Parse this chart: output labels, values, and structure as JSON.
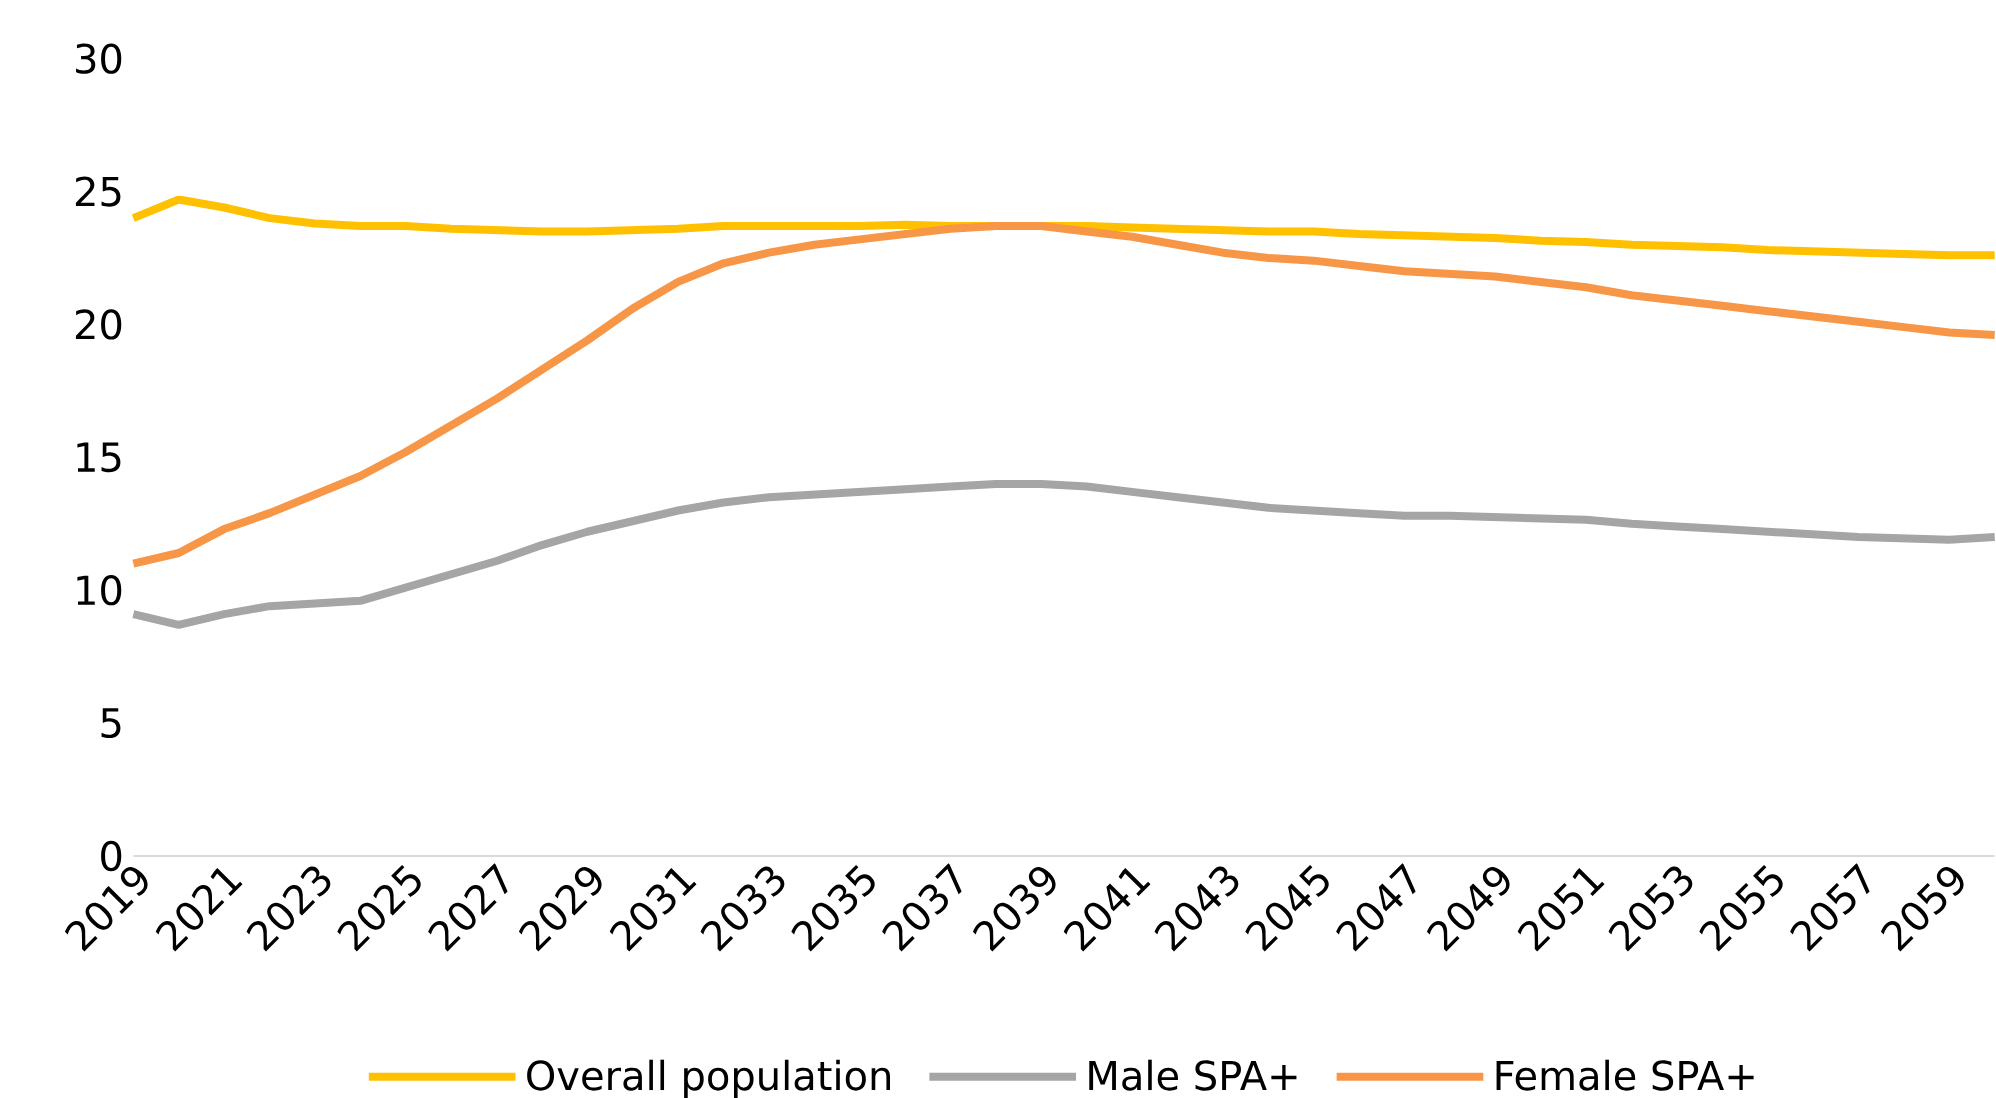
{
  "chart_data": {
    "type": "line",
    "x": [
      2019,
      2020,
      2021,
      2022,
      2023,
      2024,
      2025,
      2026,
      2027,
      2028,
      2029,
      2030,
      2031,
      2032,
      2033,
      2034,
      2035,
      2036,
      2037,
      2038,
      2039,
      2040,
      2041,
      2042,
      2043,
      2044,
      2045,
      2046,
      2047,
      2048,
      2049,
      2050,
      2051,
      2052,
      2053,
      2054,
      2055,
      2056,
      2057,
      2058,
      2059,
      2060
    ],
    "xlim": [
      2019,
      2060
    ],
    "xticks": [
      2019,
      2021,
      2023,
      2025,
      2027,
      2029,
      2031,
      2033,
      2035,
      2037,
      2039,
      2041,
      2043,
      2045,
      2047,
      2049,
      2051,
      2053,
      2055,
      2057,
      2059
    ],
    "ylim": [
      0,
      30
    ],
    "yticks": [
      0,
      5,
      10,
      15,
      20,
      25,
      30
    ],
    "legend": "bottom",
    "series": [
      {
        "name": "Overall population",
        "color": "#ffc000",
        "values": [
          24.0,
          24.7,
          24.4,
          24.0,
          23.8,
          23.7,
          23.7,
          23.6,
          23.55,
          23.5,
          23.5,
          23.55,
          23.6,
          23.7,
          23.7,
          23.7,
          23.7,
          23.75,
          23.7,
          23.7,
          23.7,
          23.7,
          23.65,
          23.6,
          23.55,
          23.5,
          23.5,
          23.4,
          23.35,
          23.3,
          23.25,
          23.15,
          23.1,
          23.0,
          22.95,
          22.9,
          22.8,
          22.75,
          22.7,
          22.65,
          22.6,
          22.6
        ]
      },
      {
        "name": "Male SPA+",
        "color": "#a5a5a5",
        "values": [
          9.1,
          8.7,
          9.1,
          9.4,
          9.5,
          9.6,
          10.1,
          10.6,
          11.1,
          11.7,
          12.2,
          12.6,
          13.0,
          13.3,
          13.5,
          13.6,
          13.7,
          13.8,
          13.9,
          14.0,
          14.0,
          13.9,
          13.7,
          13.5,
          13.3,
          13.1,
          13.0,
          12.9,
          12.8,
          12.8,
          12.75,
          12.7,
          12.65,
          12.5,
          12.4,
          12.3,
          12.2,
          12.1,
          12.0,
          11.95,
          11.9,
          12.0
        ]
      },
      {
        "name": "Female SPA+",
        "color": "#f79646",
        "values": [
          11.0,
          11.4,
          12.3,
          12.9,
          13.6,
          14.3,
          15.2,
          16.2,
          17.2,
          18.3,
          19.4,
          20.6,
          21.6,
          22.3,
          22.7,
          23.0,
          23.2,
          23.4,
          23.6,
          23.7,
          23.7,
          23.5,
          23.3,
          23.0,
          22.7,
          22.5,
          22.4,
          22.2,
          22.0,
          21.9,
          21.8,
          21.6,
          21.4,
          21.1,
          20.9,
          20.7,
          20.5,
          20.3,
          20.1,
          19.9,
          19.7,
          19.6
        ]
      }
    ]
  }
}
